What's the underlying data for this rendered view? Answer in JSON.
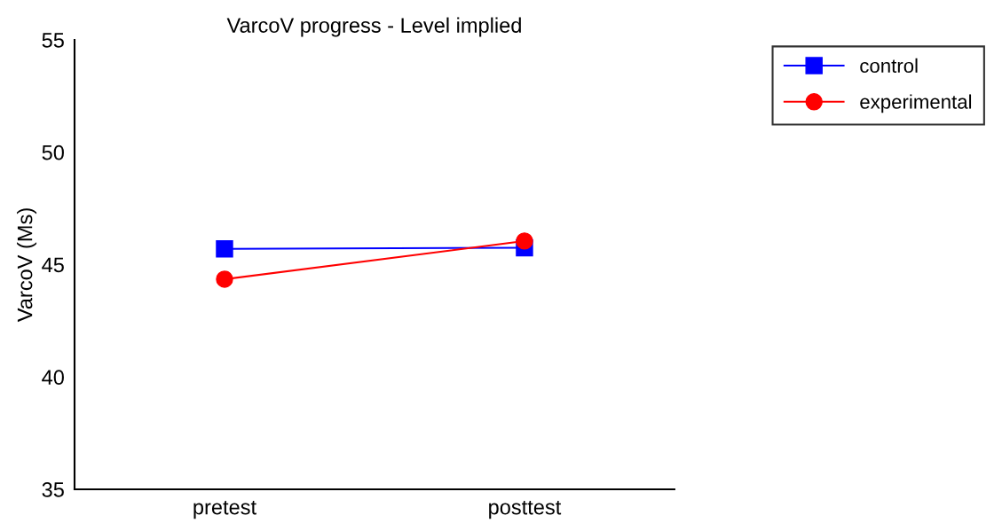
{
  "chart_data": {
    "type": "line",
    "title": "VarcoV progress - Level implied",
    "ylabel": "VarcoV (Ms)",
    "categories": [
      "pretest",
      "posttest"
    ],
    "series": [
      {
        "name": "control",
        "color": "#0000ff",
        "marker": "square",
        "values": [
          45.7,
          45.75
        ]
      },
      {
        "name": "experimental",
        "color": "#ff0000",
        "marker": "circle",
        "values": [
          44.35,
          46.05
        ]
      }
    ],
    "ylim": [
      35,
      55
    ],
    "yticks": [
      35,
      40,
      45,
      50,
      55
    ],
    "grid": false,
    "legend": "top right",
    "line_style": "solid"
  }
}
